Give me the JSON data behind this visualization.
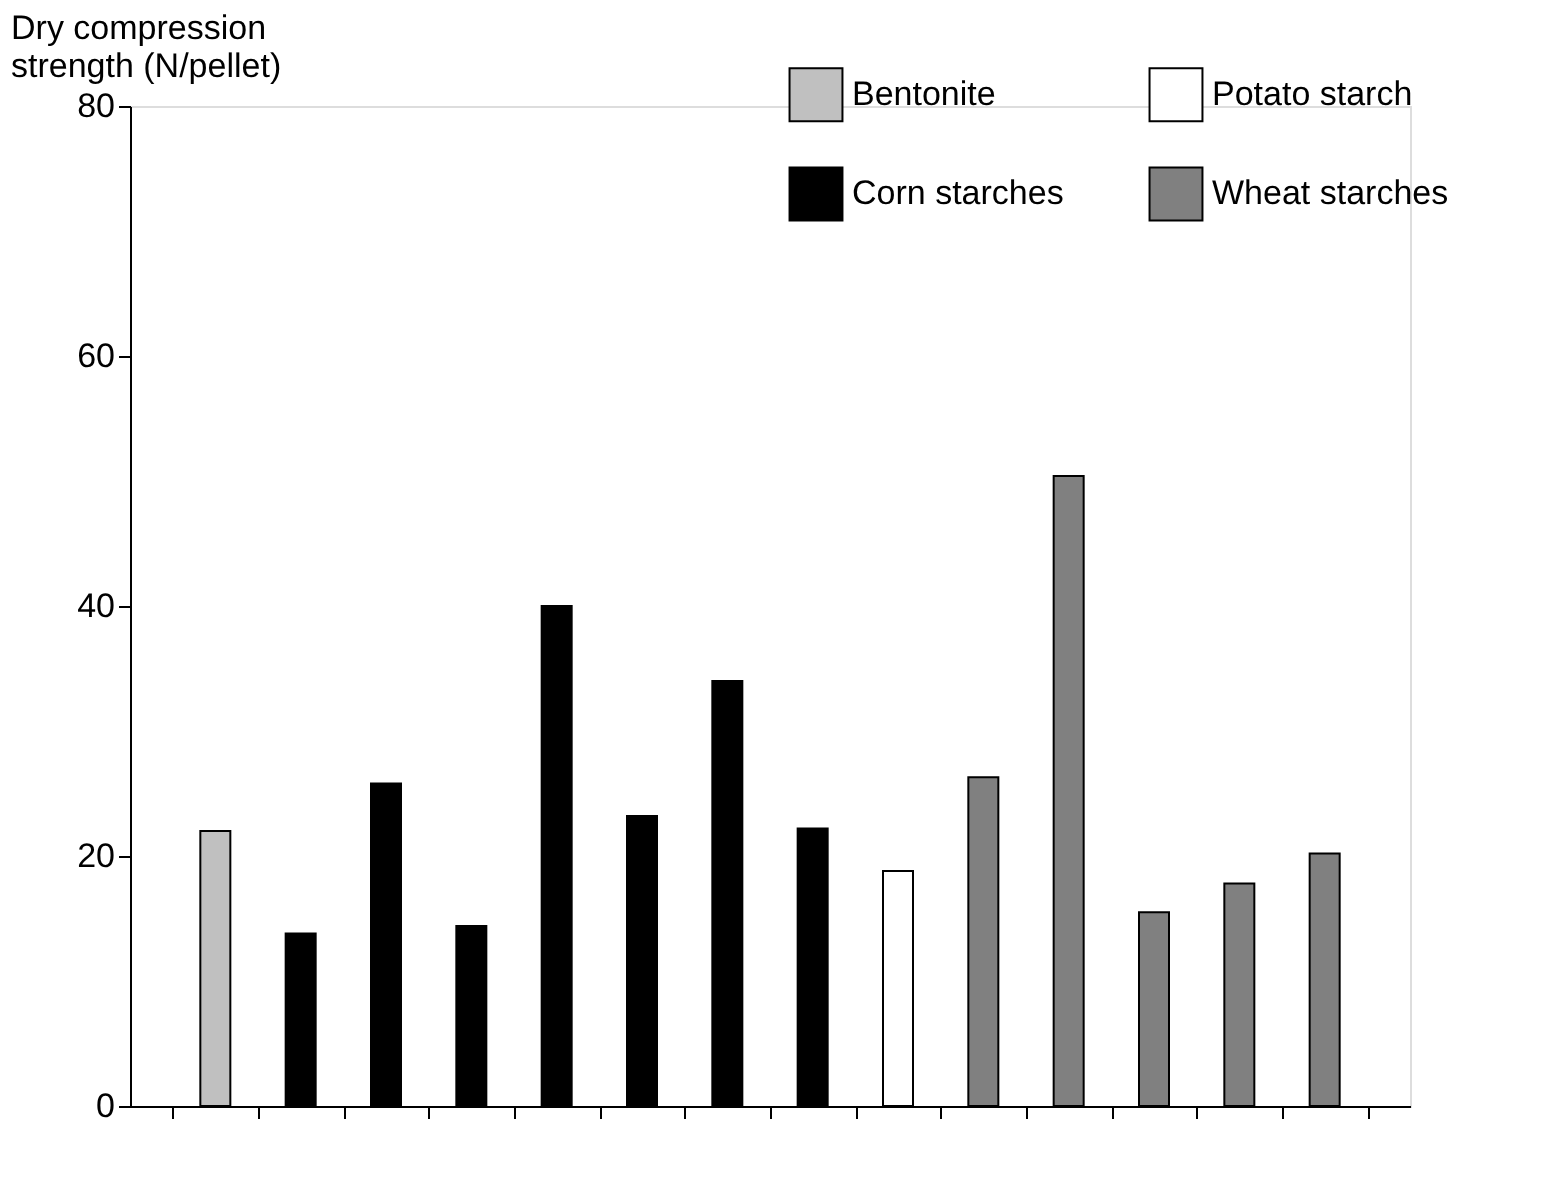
{
  "chart_data": {
    "type": "bar",
    "ylabel": "Dry compression strength (N/pellet)",
    "categories": [
      null,
      null,
      null,
      null,
      null,
      null,
      null,
      null,
      null,
      null,
      null,
      null,
      null,
      null
    ],
    "series": [
      {
        "name": "Bentonite",
        "color": "#c0c0c0",
        "values": [
          22,
          null,
          null,
          null,
          null,
          null,
          null,
          null,
          null,
          null,
          null,
          null,
          null,
          null
        ]
      },
      {
        "name": "Corn starches",
        "color": "#000000",
        "values": [
          null,
          13.8,
          25.8,
          14.4,
          40,
          23.2,
          34,
          22.2,
          null,
          null,
          null,
          null,
          null,
          null
        ]
      },
      {
        "name": "Potato starch",
        "color": "#ffffff",
        "values": [
          null,
          null,
          null,
          null,
          null,
          null,
          null,
          null,
          18.8,
          null,
          null,
          null,
          null,
          null
        ]
      },
      {
        "name": "Wheat starches",
        "color": "#808080",
        "values": [
          null,
          null,
          null,
          null,
          null,
          null,
          null,
          null,
          null,
          26.3,
          50.4,
          15.5,
          17.8,
          20.2
        ]
      }
    ],
    "ylim": [
      0,
      80
    ],
    "yticks": [
      0,
      20,
      40,
      60,
      80
    ],
    "grid": false,
    "legend": "top right",
    "tick_labels": "y"
  }
}
